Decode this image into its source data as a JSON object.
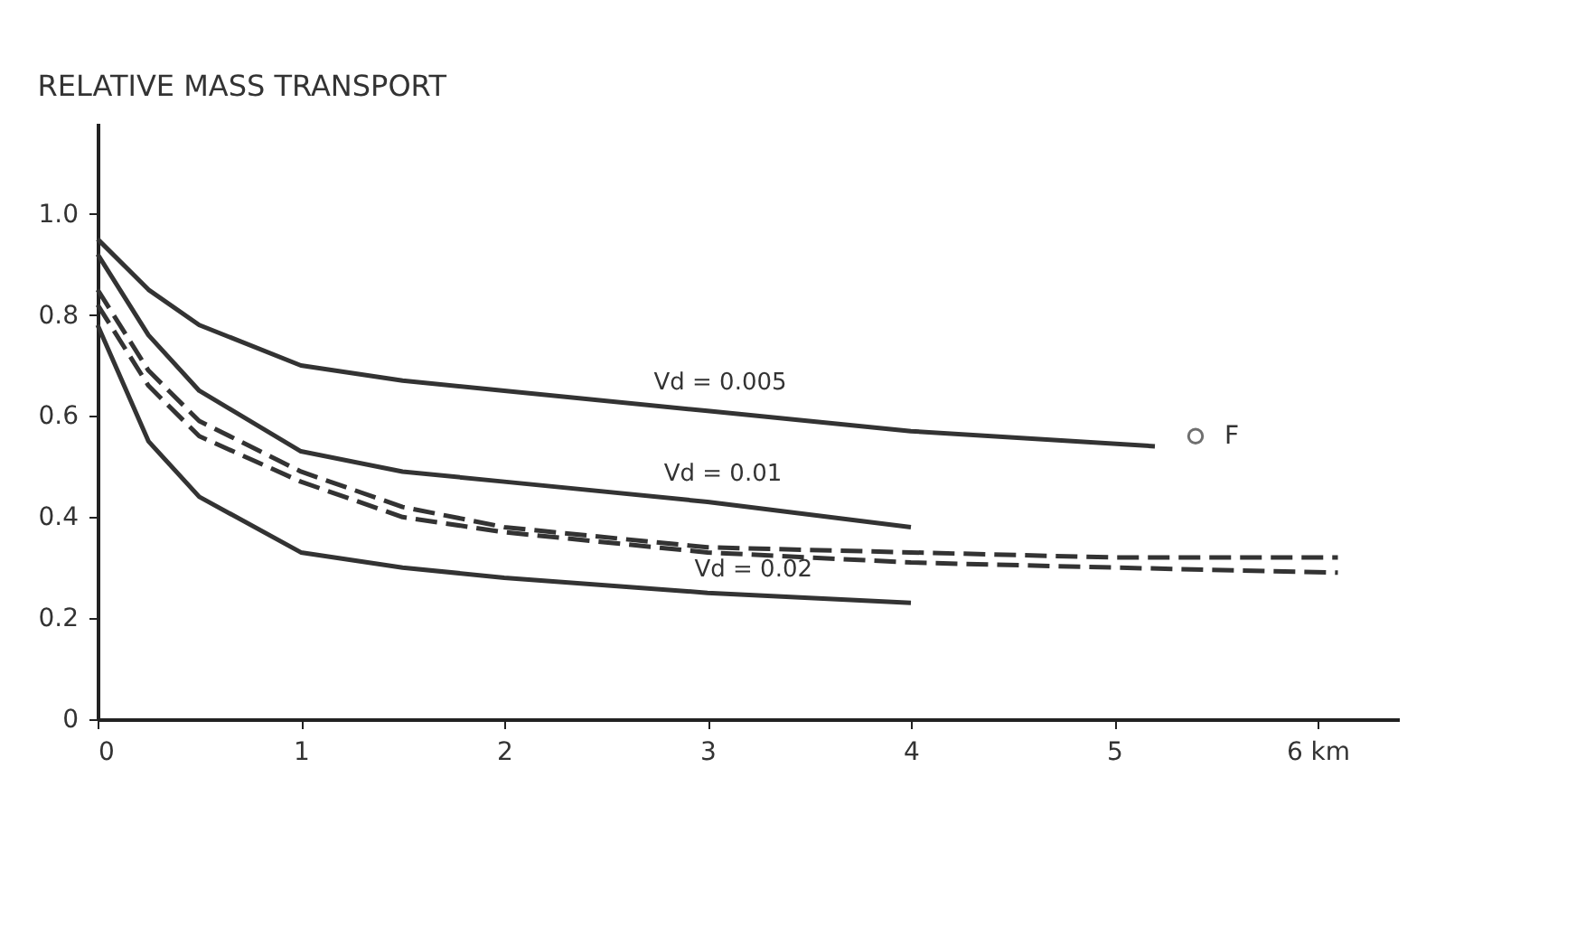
{
  "chart_data": {
    "type": "line",
    "title": "RELATIVE MASS TRANSPORT",
    "xlim": [
      0,
      6.4
    ],
    "ylim": [
      0,
      1.18
    ],
    "xticks": [
      0,
      1,
      2,
      3,
      4,
      5,
      {
        "value": 6,
        "label": "6 km"
      }
    ],
    "yticks": [
      0,
      0.2,
      0.4,
      0.6,
      0.8,
      {
        "value": 1,
        "label": "1.0"
      }
    ],
    "grid": false,
    "marker": "none",
    "series": [
      {
        "color": "#333333",
        "line_style": "solid",
        "x": [
          0,
          0.25,
          0.5,
          1,
          1.5,
          2,
          3,
          4,
          5.2
        ],
        "values": [
          0.95,
          0.85,
          0.78,
          0.7,
          0.67,
          0.65,
          0.61,
          0.57,
          0.54
        ]
      },
      {
        "color": "#333333",
        "line_style": "solid",
        "x": [
          0,
          0.25,
          0.5,
          1,
          1.5,
          2,
          3,
          4
        ],
        "values": [
          0.92,
          0.76,
          0.65,
          0.53,
          0.49,
          0.47,
          0.43,
          0.38
        ]
      },
      {
        "color": "#333333",
        "line_style": "dashed",
        "x": [
          0,
          0.25,
          0.5,
          1,
          1.5,
          2,
          3,
          4,
          5,
          6.1
        ],
        "values": [
          0.85,
          0.69,
          0.59,
          0.49,
          0.42,
          0.38,
          0.34,
          0.33,
          0.32,
          0.32
        ]
      },
      {
        "color": "#333333",
        "line_style": "dashed",
        "x": [
          0,
          0.25,
          0.5,
          1,
          1.5,
          2,
          3,
          4,
          5,
          6.1
        ],
        "values": [
          0.82,
          0.66,
          0.56,
          0.47,
          0.4,
          0.37,
          0.33,
          0.31,
          0.3,
          0.29
        ]
      },
      {
        "color": "#333333",
        "line_style": "solid",
        "x": [
          0,
          0.25,
          0.5,
          1,
          1.5,
          2,
          3,
          4
        ],
        "values": [
          0.78,
          0.55,
          0.44,
          0.33,
          0.3,
          0.28,
          0.25,
          0.23
        ]
      },
      {
        "name": "F",
        "type": "scatter",
        "color": "#333333",
        "marker": "circle",
        "x": [
          5.4
        ],
        "values": [
          0.56
        ]
      }
    ],
    "annotations": [
      {
        "text": "Vd = 0.005",
        "x": 2.7,
        "y": 0.62
      },
      {
        "text": "Vd = 0.01",
        "x": 2.75,
        "y": 0.44
      },
      {
        "text": "Vd = 0.02",
        "x": 2.9,
        "y": 0.25
      }
    ]
  }
}
